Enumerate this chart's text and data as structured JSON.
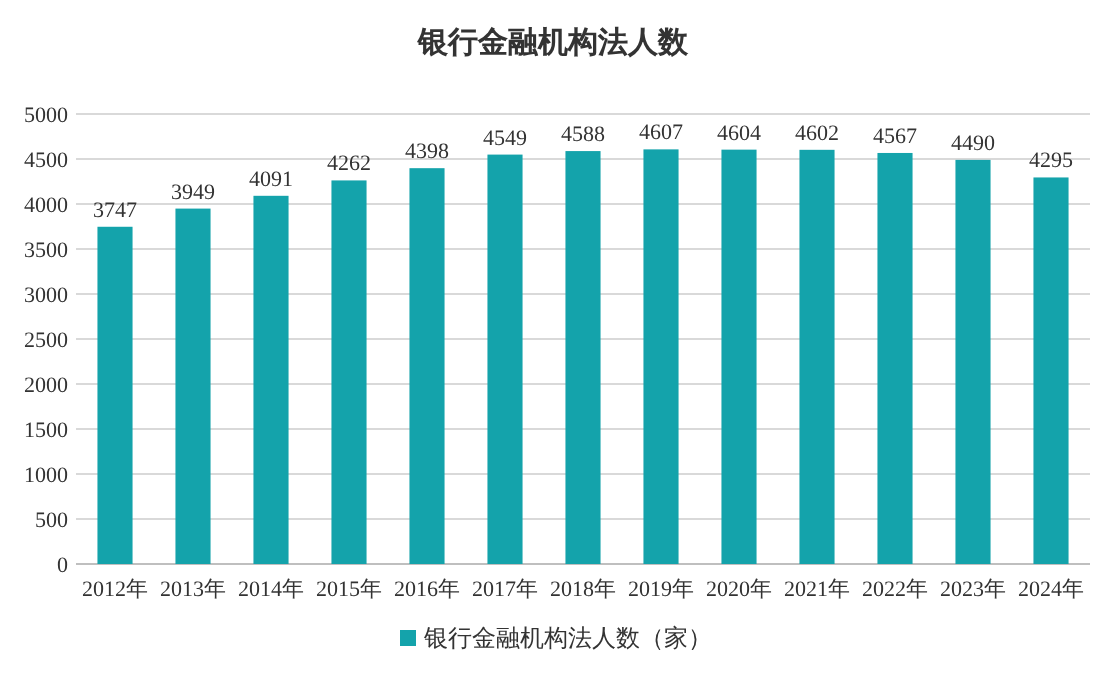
{
  "chart_data": {
    "type": "bar",
    "title": "银行金融机构法人数",
    "categories": [
      "2012年",
      "2013年",
      "2014年",
      "2015年",
      "2016年",
      "2017年",
      "2018年",
      "2019年",
      "2020年",
      "2021年",
      "2022年",
      "2023年",
      "2024年"
    ],
    "series": [
      {
        "name": "银行金融机构法人数（家）",
        "color": "#14a3ab",
        "values": [
          3747,
          3949,
          4091,
          4262,
          4398,
          4549,
          4588,
          4607,
          4604,
          4602,
          4567,
          4490,
          4295
        ]
      }
    ],
    "ylim": [
      0,
      5000
    ],
    "yticks": [
      0,
      500,
      1000,
      1500,
      2000,
      2500,
      3000,
      3500,
      4000,
      4500,
      5000
    ],
    "grid": "y",
    "legend": "bottom",
    "data_labels": true
  }
}
